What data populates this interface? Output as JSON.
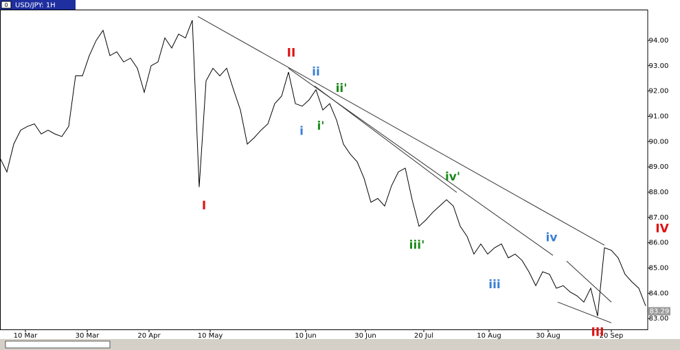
{
  "window_index": "0",
  "chart_data": {
    "type": "line",
    "title": "USD/JPY: 1H",
    "series": [
      {
        "name": "USD/JPY",
        "color": "#000000",
        "values": [
          89.35,
          88.8,
          89.9,
          90.45,
          90.6,
          90.7,
          90.3,
          90.45,
          90.3,
          90.2,
          90.6,
          92.6,
          92.6,
          93.4,
          94.0,
          94.4,
          93.4,
          93.55,
          93.15,
          93.3,
          92.9,
          91.95,
          93.0,
          93.15,
          94.1,
          93.7,
          94.25,
          94.1,
          94.8,
          88.2,
          92.4,
          92.9,
          92.6,
          92.9,
          92.05,
          91.25,
          89.9,
          90.15,
          90.45,
          90.7,
          91.5,
          91.8,
          92.75,
          91.5,
          91.4,
          91.65,
          92.05,
          91.25,
          91.5,
          90.85,
          89.9,
          89.5,
          89.2,
          88.55,
          87.6,
          87.75,
          87.45,
          88.25,
          88.8,
          88.95,
          87.7,
          86.65,
          86.9,
          87.2,
          87.45,
          87.7,
          87.45,
          86.65,
          86.25,
          85.55,
          85.95,
          85.55,
          85.8,
          85.95,
          85.4,
          85.55,
          85.3,
          84.85,
          84.3,
          84.85,
          84.75,
          84.2,
          84.3,
          84.05,
          83.9,
          83.65,
          84.2,
          83.1,
          85.8,
          85.7,
          85.4,
          84.75,
          84.45,
          84.2,
          83.5
        ]
      }
    ],
    "xlim": [
      0,
      94.3
    ],
    "xticks": [
      {
        "value": 3.7,
        "label": "10 Mar"
      },
      {
        "value": 12.7,
        "label": "30 Mar"
      },
      {
        "value": 21.7,
        "label": "20 Apr"
      },
      {
        "value": 30.6,
        "label": "10 May"
      },
      {
        "value": 44.5,
        "label": "10 Jun"
      },
      {
        "value": 53.2,
        "label": "30 Jun"
      },
      {
        "value": 61.7,
        "label": "20 Jul"
      },
      {
        "value": 71.2,
        "label": "10 Aug"
      },
      {
        "value": 79.8,
        "label": "30 Aug"
      },
      {
        "value": 89.0,
        "label": "20 Sep"
      }
    ],
    "ylim": [
      82.57,
      95.22
    ],
    "yticks": [
      {
        "value": 83,
        "label": "83.00"
      },
      {
        "value": 84,
        "label": "84.00"
      },
      {
        "value": 85,
        "label": "85.00"
      },
      {
        "value": 86,
        "label": "86.00"
      },
      {
        "value": 87,
        "label": "87.00"
      },
      {
        "value": 88,
        "label": "88.00"
      },
      {
        "value": 89,
        "label": "89.00"
      },
      {
        "value": 90,
        "label": "90.00"
      },
      {
        "value": 91,
        "label": "91.00"
      },
      {
        "value": 92,
        "label": "92.00"
      },
      {
        "value": 93,
        "label": "93.00"
      },
      {
        "value": 94,
        "label": "94.00"
      }
    ],
    "last_price": {
      "value": 83.29,
      "label": "83.29"
    },
    "annotations": [
      {
        "text": "I",
        "color": "#e01010",
        "x": 29.7,
        "y": 87.45
      },
      {
        "text": "II",
        "color": "#e01010",
        "x": 42.4,
        "y": 93.5
      },
      {
        "text": "III",
        "color": "#e01010",
        "x": 87,
        "y": 82.45
      },
      {
        "text": "IV",
        "color": "#e01010",
        "x": 96.4,
        "y": 86.55
      },
      {
        "text": "i",
        "color": "#3a7fd5",
        "x": 43.9,
        "y": 90.4
      },
      {
        "text": "ii",
        "color": "#3a7fd5",
        "x": 46,
        "y": 92.75
      },
      {
        "text": "iii",
        "color": "#3a7fd5",
        "x": 72,
        "y": 84.33
      },
      {
        "text": "iv",
        "color": "#3a7fd5",
        "x": 80.3,
        "y": 86.2
      },
      {
        "text": "i'",
        "color": "#1a8a1a",
        "x": 46.7,
        "y": 90.6
      },
      {
        "text": "ii'",
        "color": "#1a8a1a",
        "x": 49.7,
        "y": 92.1
      },
      {
        "text": "iii'",
        "color": "#1a8a1a",
        "x": 60.7,
        "y": 85.9
      },
      {
        "text": "iv'",
        "color": "#1a8a1a",
        "x": 65.9,
        "y": 88.6
      }
    ],
    "trendlines": [
      {
        "x": [
          28.8,
          88
        ],
        "y": [
          94.95,
          85.9
        ]
      },
      {
        "x": [
          42,
          80.5
        ],
        "y": [
          92.9,
          85.5
        ]
      },
      {
        "x": [
          45.8,
          66.5
        ],
        "y": [
          92.2,
          87.99
        ]
      },
      {
        "x": [
          82.5,
          89
        ],
        "y": [
          85.27,
          83.65
        ]
      },
      {
        "x": [
          81.2,
          89
        ],
        "y": [
          83.65,
          82.83
        ]
      }
    ]
  }
}
